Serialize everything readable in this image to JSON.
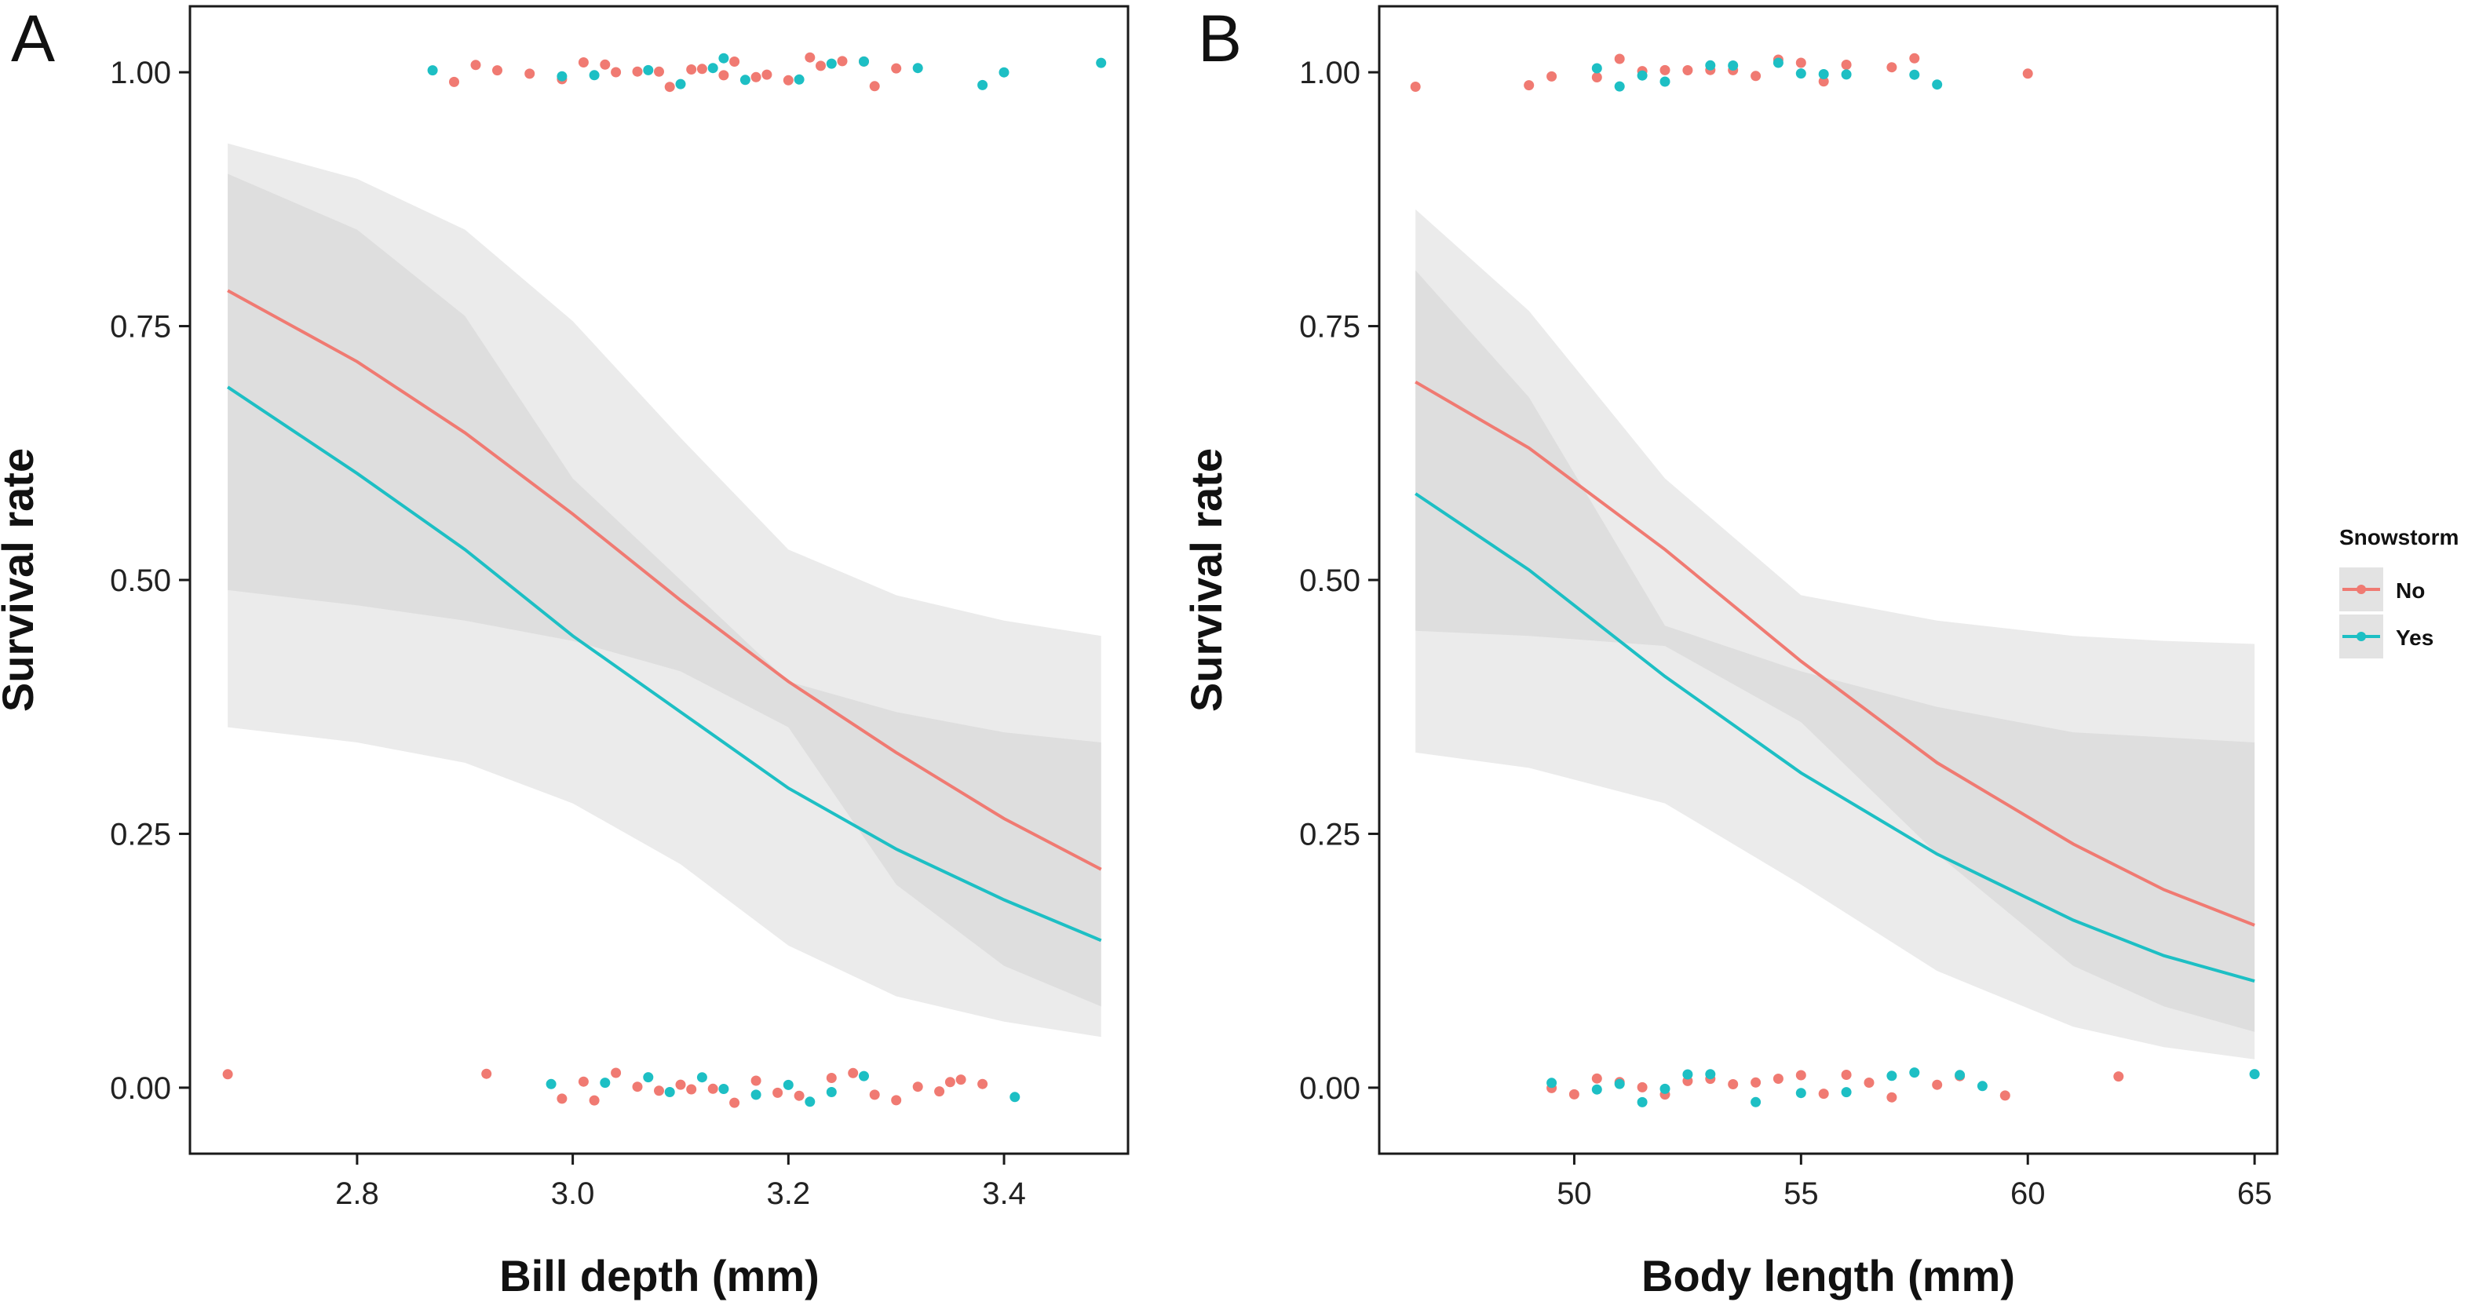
{
  "figure": {
    "legend": {
      "title": "Snowstorm",
      "placement": "right",
      "items": [
        {
          "label": "No",
          "color": "#F07A72"
        },
        {
          "label": "Yes",
          "color": "#1DBFC4"
        }
      ]
    },
    "band_colors": {
      "outer": "#EBEBEB",
      "inner": "#D9D9D9"
    }
  },
  "chart_data": [
    {
      "type": "line",
      "panel_label": "A",
      "xlabel": "Bill depth (mm)",
      "ylabel": "Survival rate",
      "xlim": [
        2.645,
        3.515
      ],
      "ylim": [
        -0.065,
        1.065
      ],
      "xticks": [
        2.8,
        3.0,
        3.2,
        3.4
      ],
      "xtick_labels": [
        "2.8",
        "3.0",
        "3.2",
        "3.4"
      ],
      "yticks": [
        0.0,
        0.25,
        0.5,
        0.75,
        1.0
      ],
      "ytick_labels": [
        "0.00",
        "0.25",
        "0.50",
        "0.75",
        "1.00"
      ],
      "grid": false,
      "series": [
        {
          "name": "No",
          "color": "#F07A72",
          "x": [
            2.68,
            2.8,
            2.9,
            3.0,
            3.1,
            3.2,
            3.3,
            3.4,
            3.49
          ],
          "y": [
            0.785,
            0.715,
            0.645,
            0.565,
            0.48,
            0.4,
            0.33,
            0.265,
            0.215
          ],
          "ci_lower": [
            0.355,
            0.34,
            0.32,
            0.28,
            0.22,
            0.14,
            0.09,
            0.065,
            0.05
          ],
          "ci_upper": [
            0.93,
            0.895,
            0.845,
            0.755,
            0.64,
            0.53,
            0.485,
            0.46,
            0.445
          ]
        },
        {
          "name": "Yes",
          "color": "#1DBFC4",
          "x": [
            2.68,
            2.8,
            2.9,
            3.0,
            3.1,
            3.2,
            3.3,
            3.4,
            3.49
          ],
          "y": [
            0.69,
            0.605,
            0.53,
            0.445,
            0.37,
            0.295,
            0.235,
            0.185,
            0.145
          ],
          "ci_lower": [
            0.49,
            0.475,
            0.46,
            0.44,
            0.41,
            0.355,
            0.2,
            0.12,
            0.08
          ],
          "ci_upper": [
            0.9,
            0.845,
            0.76,
            0.6,
            0.5,
            0.4,
            0.37,
            0.35,
            0.34
          ]
        }
      ],
      "points": [
        {
          "group": "No",
          "y": 1,
          "x": [
            2.89,
            2.91,
            2.93,
            2.96,
            2.99,
            3.01,
            3.03,
            3.04,
            3.06,
            3.08,
            3.09,
            3.11,
            3.12,
            3.14,
            3.15,
            3.17,
            3.18,
            3.2,
            3.22,
            3.23,
            3.25,
            3.27,
            3.28,
            3.3
          ]
        },
        {
          "group": "Yes",
          "y": 1,
          "x": [
            2.87,
            2.99,
            3.02,
            3.07,
            3.1,
            3.13,
            3.14,
            3.16,
            3.21,
            3.24,
            3.27,
            3.32,
            3.38,
            3.4,
            3.49
          ]
        },
        {
          "group": "No",
          "y": 0,
          "x": [
            2.68,
            2.92,
            2.99,
            3.01,
            3.02,
            3.04,
            3.06,
            3.08,
            3.1,
            3.11,
            3.13,
            3.15,
            3.17,
            3.19,
            3.21,
            3.24,
            3.26,
            3.28,
            3.3,
            3.32,
            3.34,
            3.35,
            3.36,
            3.38
          ]
        },
        {
          "group": "Yes",
          "y": 0,
          "x": [
            2.98,
            3.03,
            3.07,
            3.09,
            3.12,
            3.14,
            3.17,
            3.2,
            3.22,
            3.24,
            3.27,
            3.41
          ]
        }
      ]
    },
    {
      "type": "line",
      "panel_label": "B",
      "xlabel": "Body length (mm)",
      "ylabel": "Survival rate",
      "xlim": [
        45.7,
        65.5
      ],
      "ylim": [
        -0.065,
        1.065
      ],
      "xticks": [
        50,
        55,
        60,
        65
      ],
      "xtick_labels": [
        "50",
        "55",
        "60",
        "65"
      ],
      "yticks": [
        0.0,
        0.25,
        0.5,
        0.75,
        1.0
      ],
      "ytick_labels": [
        "0.00",
        "0.25",
        "0.50",
        "0.75",
        "1.00"
      ],
      "grid": false,
      "series": [
        {
          "name": "No",
          "color": "#F07A72",
          "x": [
            46.5,
            49,
            52,
            55,
            58,
            61,
            63,
            65
          ],
          "y": [
            0.695,
            0.63,
            0.53,
            0.42,
            0.32,
            0.24,
            0.195,
            0.16
          ],
          "ci_lower": [
            0.33,
            0.315,
            0.28,
            0.2,
            0.115,
            0.06,
            0.04,
            0.028
          ],
          "ci_upper": [
            0.865,
            0.765,
            0.6,
            0.485,
            0.46,
            0.445,
            0.44,
            0.437
          ]
        },
        {
          "name": "Yes",
          "color": "#1DBFC4",
          "x": [
            46.5,
            49,
            52,
            55,
            58,
            61,
            63,
            65
          ],
          "y": [
            0.585,
            0.51,
            0.405,
            0.31,
            0.23,
            0.165,
            0.13,
            0.105
          ],
          "ci_lower": [
            0.45,
            0.445,
            0.435,
            0.36,
            0.23,
            0.12,
            0.08,
            0.055
          ],
          "ci_upper": [
            0.805,
            0.68,
            0.455,
            0.41,
            0.375,
            0.35,
            0.345,
            0.34
          ]
        }
      ],
      "points": [
        {
          "group": "No",
          "y": 1,
          "x": [
            46.5,
            49,
            49.5,
            50.5,
            51,
            51.5,
            52,
            52.5,
            53,
            53.5,
            54,
            54.5,
            55,
            55.5,
            56,
            57,
            57.5,
            60
          ]
        },
        {
          "group": "Yes",
          "y": 1,
          "x": [
            50.5,
            51,
            51.5,
            52,
            53,
            53.5,
            54.5,
            55,
            55.5,
            56,
            57.5,
            58
          ]
        },
        {
          "group": "No",
          "y": 0,
          "x": [
            49.5,
            50,
            50.5,
            51,
            51.5,
            52,
            52.5,
            53,
            53.5,
            54,
            54.5,
            55,
            55.5,
            56,
            56.5,
            57,
            58,
            58.5,
            59.5,
            62
          ]
        },
        {
          "group": "Yes",
          "y": 0,
          "x": [
            49.5,
            50.5,
            51,
            51.5,
            52,
            52.5,
            53,
            54,
            55,
            56,
            57,
            57.5,
            58.5,
            59,
            65
          ]
        }
      ]
    }
  ]
}
